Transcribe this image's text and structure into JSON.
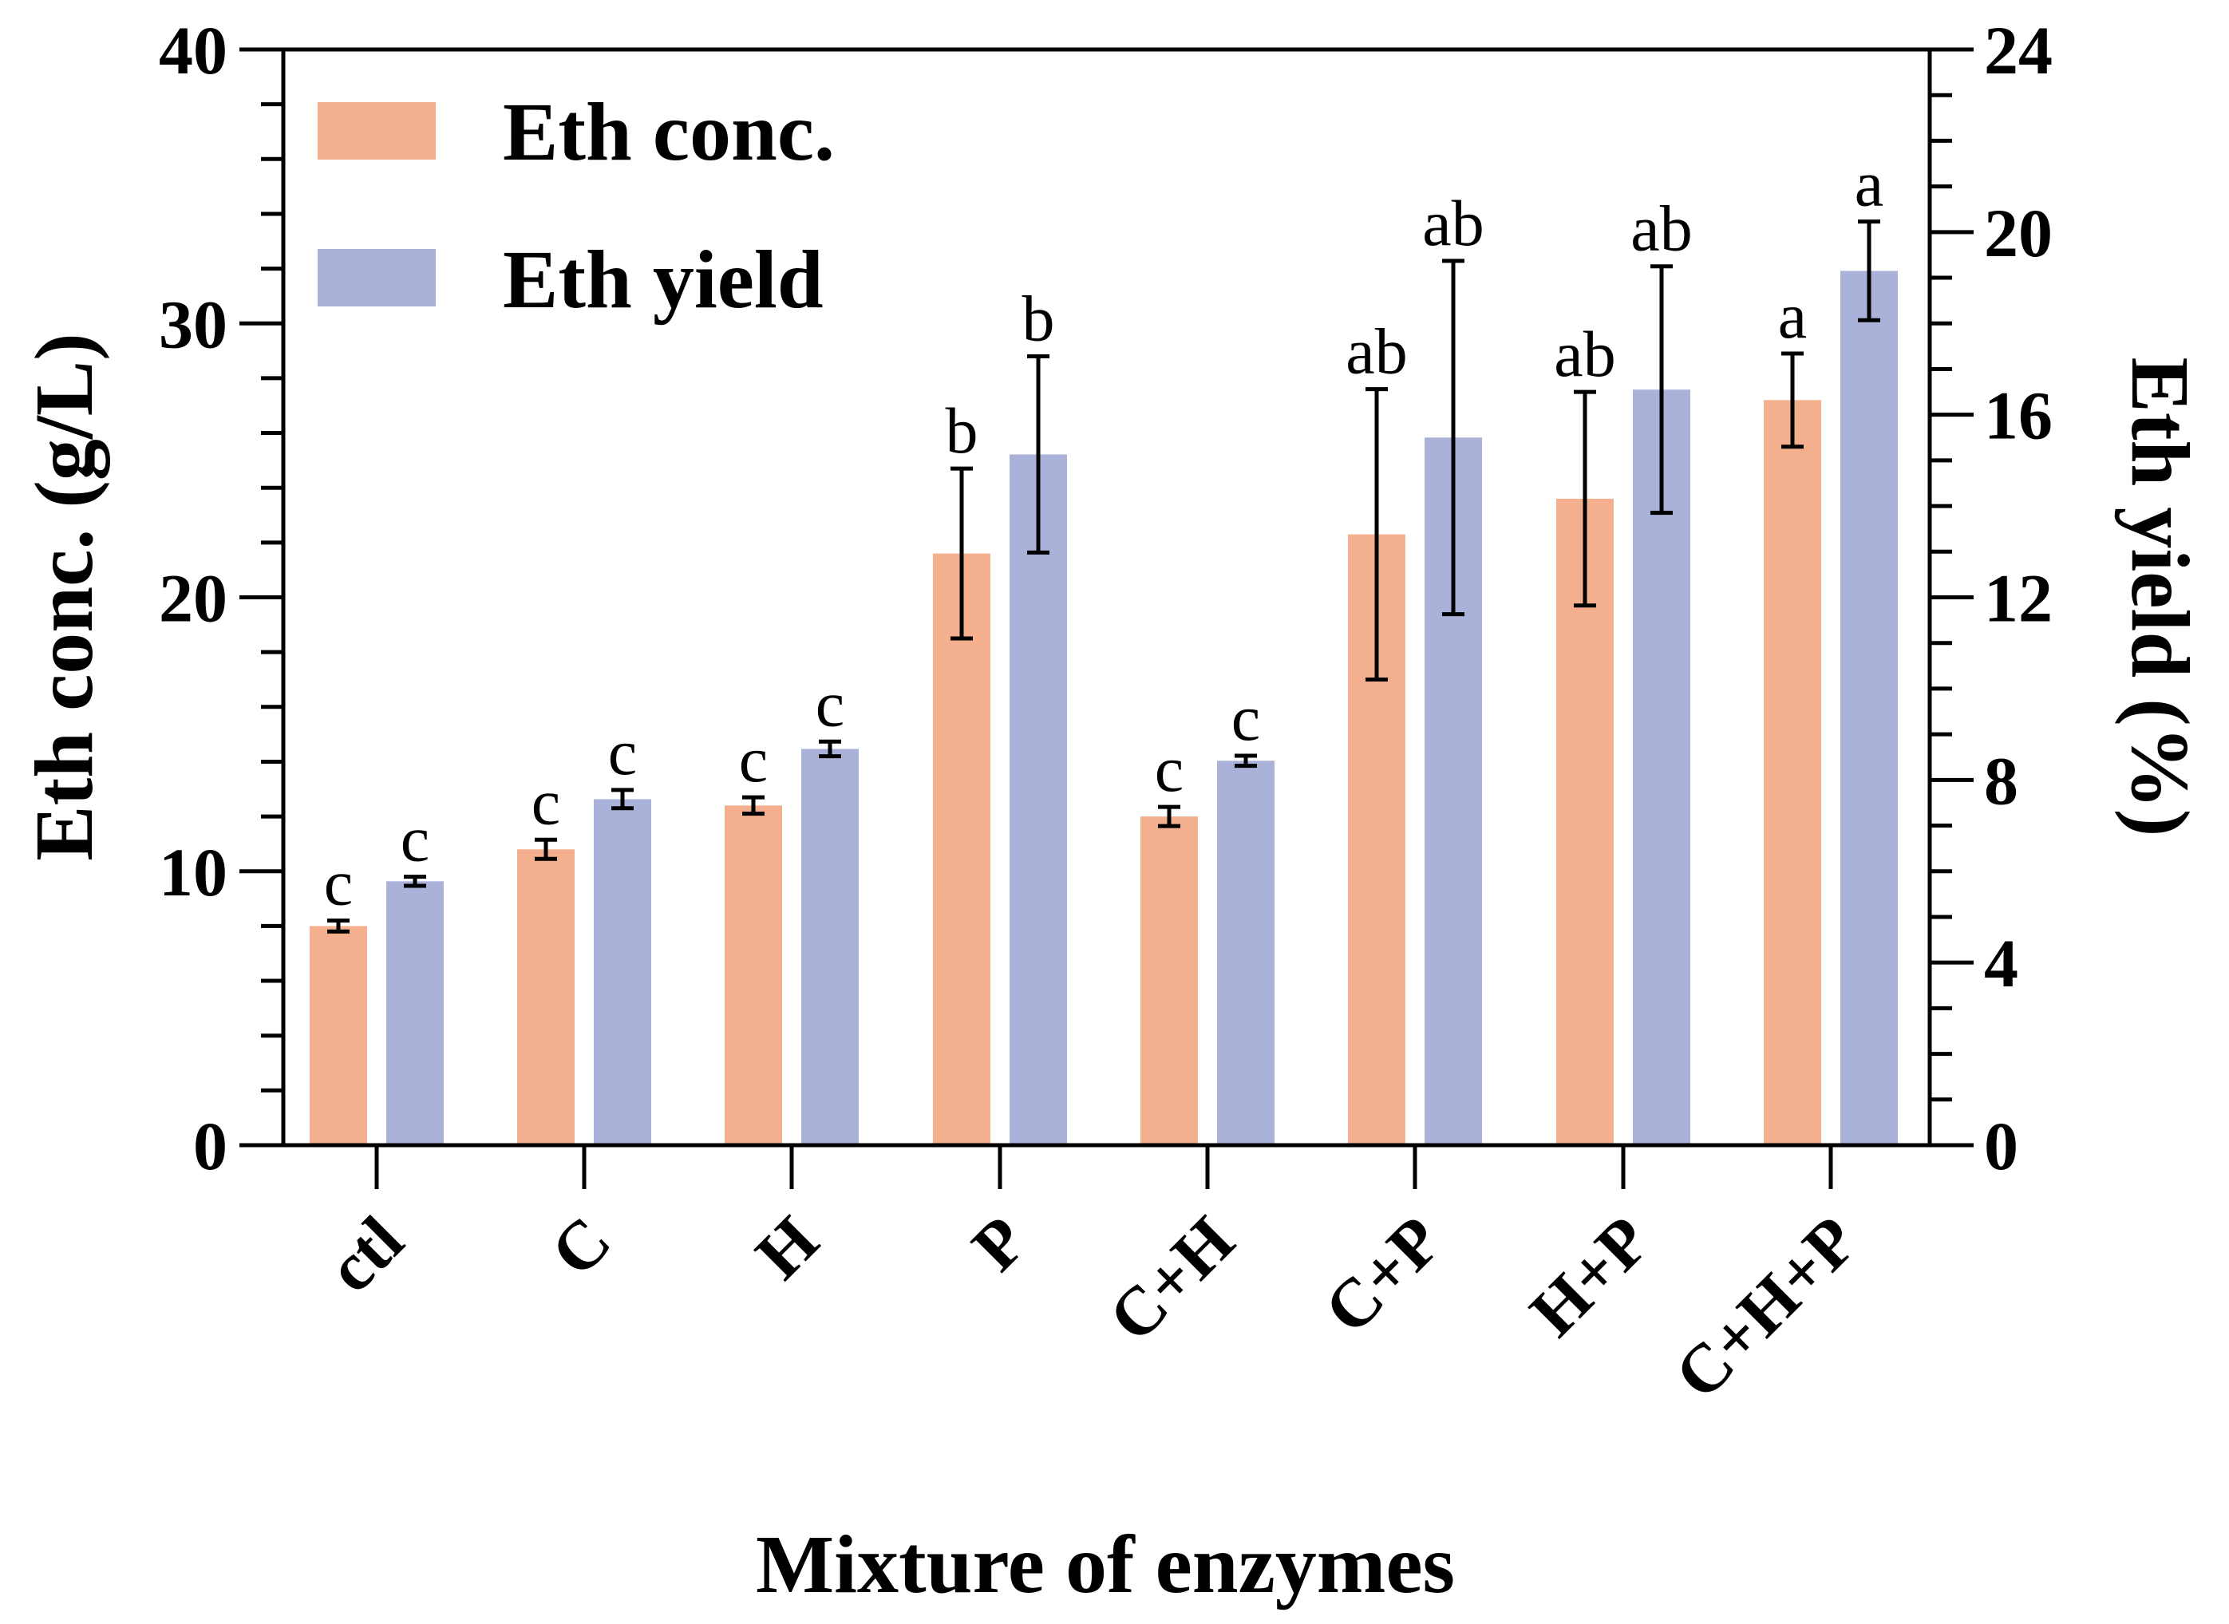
{
  "chart_data": {
    "type": "bar",
    "title": "",
    "xlabel": "Mixture of enzymes",
    "ylabel": "Eth conc. (g/L)",
    "y2label": "Eth yield (%)",
    "categories": [
      "ctl",
      "C",
      "H",
      "P",
      "C+H",
      "C+P",
      "H+P",
      "C+H+P"
    ],
    "ylim": [
      0,
      40
    ],
    "y2lim": [
      0,
      24
    ],
    "yticks": [
      "0",
      "10",
      "20",
      "30",
      "40"
    ],
    "y2ticks": [
      "0",
      "4",
      "8",
      "12",
      "16",
      "20",
      "24"
    ],
    "legend_position": "top-left",
    "series": [
      {
        "name": "Eth conc.",
        "axis": "left",
        "color": "#f4b08e",
        "values": [
          8.0,
          10.8,
          12.4,
          21.6,
          12.0,
          22.3,
          23.6,
          27.2
        ],
        "errors": [
          0.2,
          0.35,
          0.3,
          3.1,
          0.35,
          5.3,
          3.9,
          1.7
        ],
        "sig": [
          "c",
          "c",
          "c",
          "b",
          "c",
          "ab",
          "ab",
          "a"
        ]
      },
      {
        "name": "Eth yield",
        "axis": "right",
        "color": "#abb2da",
        "values": [
          5.78,
          7.58,
          8.68,
          15.13,
          8.42,
          15.5,
          16.55,
          19.15
        ],
        "errors": [
          0.1,
          0.2,
          0.16,
          2.15,
          0.11,
          3.87,
          2.7,
          1.08
        ],
        "sig": [
          "c",
          "c",
          "c",
          "b",
          "c",
          "ab",
          "ab",
          "a"
        ]
      }
    ]
  }
}
